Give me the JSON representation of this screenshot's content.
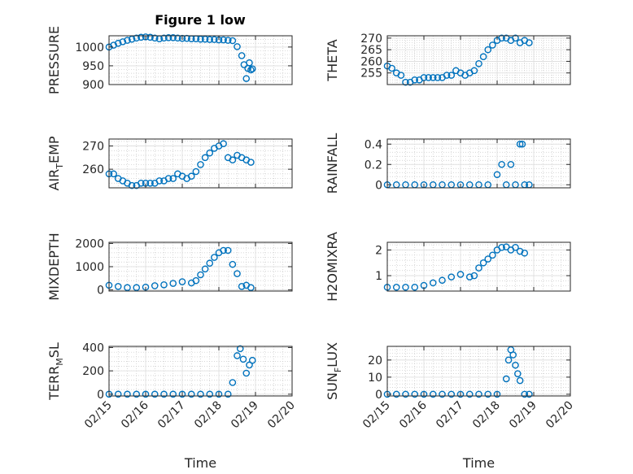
{
  "figure_title": "Figure 1 low",
  "colors": {
    "marker": "#0072BD",
    "axis": "#262626",
    "grid": "#c8c8c8",
    "background": "#ffffff"
  },
  "x_ticks": [
    "02/15",
    "02/16",
    "02/17",
    "02/18",
    "02/19",
    "02/20"
  ],
  "x_label": "Time",
  "chart_data": [
    {
      "type": "scatter",
      "ylabel": "PRESSURE",
      "title": "Figure 1 low",
      "xlim": [
        "02/15",
        "02/20"
      ],
      "ylim": [
        900,
        1030
      ],
      "yticks": [
        900,
        950,
        1000
      ],
      "grid": true,
      "points": [
        [
          "02/15 00:00",
          1000
        ],
        [
          "02/15 03:00",
          1005
        ],
        [
          "02/15 06:00",
          1010
        ],
        [
          "02/15 09:00",
          1014
        ],
        [
          "02/15 12:00",
          1018
        ],
        [
          "02/15 15:00",
          1021
        ],
        [
          "02/15 18:00",
          1024
        ],
        [
          "02/15 21:00",
          1026
        ],
        [
          "02/16 00:00",
          1027
        ],
        [
          "02/16 03:00",
          1026
        ],
        [
          "02/16 06:00",
          1024
        ],
        [
          "02/16 09:00",
          1022
        ],
        [
          "02/16 12:00",
          1024
        ],
        [
          "02/16 15:00",
          1025
        ],
        [
          "02/16 18:00",
          1025
        ],
        [
          "02/16 21:00",
          1024
        ],
        [
          "02/17 00:00",
          1023
        ],
        [
          "02/17 03:00",
          1023
        ],
        [
          "02/17 06:00",
          1022
        ],
        [
          "02/17 09:00",
          1022
        ],
        [
          "02/17 12:00",
          1021
        ],
        [
          "02/17 15:00",
          1021
        ],
        [
          "02/17 18:00",
          1020
        ],
        [
          "02/17 21:00",
          1020
        ],
        [
          "02/18 00:00",
          1019
        ],
        [
          "02/18 03:00",
          1019
        ],
        [
          "02/18 06:00",
          1018
        ],
        [
          "02/18 09:00",
          1017
        ],
        [
          "02/18 12:00",
          1001
        ],
        [
          "02/18 15:00",
          977
        ],
        [
          "02/18 16:30",
          953
        ],
        [
          "02/18 18:00",
          916
        ],
        [
          "02/18 19:00",
          943
        ],
        [
          "02/18 20:00",
          958
        ],
        [
          "02/18 21:00",
          939
        ],
        [
          "02/18 22:00",
          942
        ]
      ]
    },
    {
      "type": "scatter",
      "ylabel": "THETA",
      "xlim": [
        "02/15",
        "02/20"
      ],
      "ylim": [
        250,
        271
      ],
      "yticks": [
        255,
        260,
        265,
        270
      ],
      "grid": true,
      "points": [
        [
          "02/15 00:00",
          258
        ],
        [
          "02/15 03:00",
          257
        ],
        [
          "02/15 06:00",
          255
        ],
        [
          "02/15 09:00",
          254
        ],
        [
          "02/15 12:00",
          251
        ],
        [
          "02/15 15:00",
          251
        ],
        [
          "02/15 18:00",
          252
        ],
        [
          "02/15 21:00",
          252
        ],
        [
          "02/16 00:00",
          253
        ],
        [
          "02/16 03:00",
          253
        ],
        [
          "02/16 06:00",
          253
        ],
        [
          "02/16 09:00",
          253
        ],
        [
          "02/16 12:00",
          253
        ],
        [
          "02/16 15:00",
          254
        ],
        [
          "02/16 18:00",
          254
        ],
        [
          "02/16 21:00",
          256
        ],
        [
          "02/17 00:00",
          255
        ],
        [
          "02/17 03:00",
          254
        ],
        [
          "02/17 06:00",
          255
        ],
        [
          "02/17 09:00",
          256
        ],
        [
          "02/17 12:00",
          259
        ],
        [
          "02/17 15:00",
          262
        ],
        [
          "02/17 18:00",
          265
        ],
        [
          "02/17 21:00",
          267
        ],
        [
          "02/18 00:00",
          269
        ],
        [
          "02/18 03:00",
          270
        ],
        [
          "02/18 06:00",
          270
        ],
        [
          "02/18 09:00",
          269
        ],
        [
          "02/18 12:00",
          270
        ],
        [
          "02/18 15:00",
          268
        ],
        [
          "02/18 18:00",
          269
        ],
        [
          "02/18 21:00",
          268
        ]
      ]
    },
    {
      "type": "scatter",
      "ylabel": "AIR_TEMP",
      "xlim": [
        "02/15",
        "02/20"
      ],
      "ylim": [
        252,
        273
      ],
      "yticks": [
        260,
        270
      ],
      "grid": true,
      "points": [
        [
          "02/15 00:00",
          258
        ],
        [
          "02/15 03:00",
          258
        ],
        [
          "02/15 06:00",
          256
        ],
        [
          "02/15 09:00",
          255
        ],
        [
          "02/15 12:00",
          254
        ],
        [
          "02/15 15:00",
          253
        ],
        [
          "02/15 18:00",
          253
        ],
        [
          "02/15 21:00",
          254
        ],
        [
          "02/16 00:00",
          254
        ],
        [
          "02/16 03:00",
          254
        ],
        [
          "02/16 06:00",
          254
        ],
        [
          "02/16 09:00",
          255
        ],
        [
          "02/16 12:00",
          255
        ],
        [
          "02/16 15:00",
          256
        ],
        [
          "02/16 18:00",
          256
        ],
        [
          "02/16 21:00",
          258
        ],
        [
          "02/17 00:00",
          257
        ],
        [
          "02/17 03:00",
          256
        ],
        [
          "02/17 06:00",
          257
        ],
        [
          "02/17 09:00",
          259
        ],
        [
          "02/17 12:00",
          262
        ],
        [
          "02/17 15:00",
          265
        ],
        [
          "02/17 18:00",
          267
        ],
        [
          "02/17 21:00",
          269
        ],
        [
          "02/18 00:00",
          270
        ],
        [
          "02/18 03:00",
          271
        ],
        [
          "02/18 06:00",
          265
        ],
        [
          "02/18 09:00",
          264
        ],
        [
          "02/18 12:00",
          266
        ],
        [
          "02/18 15:00",
          265
        ],
        [
          "02/18 18:00",
          264
        ],
        [
          "02/18 21:00",
          263
        ]
      ]
    },
    {
      "type": "scatter",
      "ylabel": "RAINFALL",
      "xlim": [
        "02/15",
        "02/20"
      ],
      "ylim": [
        -0.03,
        0.45
      ],
      "yticks": [
        0,
        0.2,
        0.4
      ],
      "grid": true,
      "points": [
        [
          "02/15 00:00",
          0
        ],
        [
          "02/15 06:00",
          0
        ],
        [
          "02/15 12:00",
          0
        ],
        [
          "02/15 18:00",
          0
        ],
        [
          "02/16 00:00",
          0
        ],
        [
          "02/16 06:00",
          0
        ],
        [
          "02/16 12:00",
          0
        ],
        [
          "02/16 18:00",
          0
        ],
        [
          "02/17 00:00",
          0
        ],
        [
          "02/17 06:00",
          0
        ],
        [
          "02/17 12:00",
          0
        ],
        [
          "02/17 18:00",
          0
        ],
        [
          "02/18 00:00",
          0.1
        ],
        [
          "02/18 03:00",
          0.2
        ],
        [
          "02/18 06:00",
          0
        ],
        [
          "02/18 09:00",
          0.2
        ],
        [
          "02/18 12:00",
          0
        ],
        [
          "02/18 15:00",
          0.4
        ],
        [
          "02/18 16:30",
          0.4
        ],
        [
          "02/18 18:00",
          0
        ],
        [
          "02/18 21:00",
          0
        ]
      ]
    },
    {
      "type": "scatter",
      "ylabel": "MIXDEPTH",
      "xlim": [
        "02/15",
        "02/20"
      ],
      "ylim": [
        -50,
        2050
      ],
      "yticks": [
        0,
        1000,
        2000
      ],
      "grid": true,
      "points": [
        [
          "02/15 00:00",
          200
        ],
        [
          "02/15 06:00",
          150
        ],
        [
          "02/15 12:00",
          100
        ],
        [
          "02/15 18:00",
          100
        ],
        [
          "02/16 00:00",
          120
        ],
        [
          "02/16 06:00",
          180
        ],
        [
          "02/16 12:00",
          220
        ],
        [
          "02/16 18:00",
          280
        ],
        [
          "02/17 00:00",
          350
        ],
        [
          "02/17 06:00",
          300
        ],
        [
          "02/17 09:00",
          400
        ],
        [
          "02/17 12:00",
          650
        ],
        [
          "02/17 15:00",
          900
        ],
        [
          "02/17 18:00",
          1150
        ],
        [
          "02/17 21:00",
          1400
        ],
        [
          "02/18 00:00",
          1600
        ],
        [
          "02/18 03:00",
          1700
        ],
        [
          "02/18 06:00",
          1700
        ],
        [
          "02/18 09:00",
          1100
        ],
        [
          "02/18 12:00",
          700
        ],
        [
          "02/18 15:00",
          150
        ],
        [
          "02/18 18:00",
          200
        ],
        [
          "02/18 21:00",
          100
        ]
      ]
    },
    {
      "type": "scatter",
      "ylabel": "H2OMIXRA",
      "xlim": [
        "02/15",
        "02/20"
      ],
      "ylim": [
        0.4,
        2.3
      ],
      "yticks": [
        1,
        2
      ],
      "grid": true,
      "points": [
        [
          "02/15 00:00",
          0.55
        ],
        [
          "02/15 06:00",
          0.55
        ],
        [
          "02/15 12:00",
          0.55
        ],
        [
          "02/15 18:00",
          0.55
        ],
        [
          "02/16 00:00",
          0.62
        ],
        [
          "02/16 06:00",
          0.72
        ],
        [
          "02/16 12:00",
          0.82
        ],
        [
          "02/16 18:00",
          0.95
        ],
        [
          "02/17 00:00",
          1.05
        ],
        [
          "02/17 06:00",
          0.95
        ],
        [
          "02/17 09:00",
          1.0
        ],
        [
          "02/17 12:00",
          1.3
        ],
        [
          "02/17 15:00",
          1.5
        ],
        [
          "02/17 18:00",
          1.65
        ],
        [
          "02/17 21:00",
          1.8
        ],
        [
          "02/18 00:00",
          2.0
        ],
        [
          "02/18 03:00",
          2.1
        ],
        [
          "02/18 06:00",
          2.12
        ],
        [
          "02/18 09:00",
          2.0
        ],
        [
          "02/18 12:00",
          2.1
        ],
        [
          "02/18 15:00",
          1.95
        ],
        [
          "02/18 18:00",
          1.88
        ]
      ]
    },
    {
      "type": "scatter",
      "ylabel": "TERR_MSL",
      "xlim": [
        "02/15",
        "02/20"
      ],
      "ylim": [
        -15,
        410
      ],
      "yticks": [
        0,
        200,
        400
      ],
      "grid": true,
      "points": [
        [
          "02/15 00:00",
          0
        ],
        [
          "02/15 06:00",
          0
        ],
        [
          "02/15 12:00",
          0
        ],
        [
          "02/15 18:00",
          0
        ],
        [
          "02/16 00:00",
          0
        ],
        [
          "02/16 06:00",
          0
        ],
        [
          "02/16 12:00",
          0
        ],
        [
          "02/16 18:00",
          0
        ],
        [
          "02/17 00:00",
          0
        ],
        [
          "02/17 06:00",
          0
        ],
        [
          "02/17 12:00",
          0
        ],
        [
          "02/17 18:00",
          0
        ],
        [
          "02/18 00:00",
          0
        ],
        [
          "02/18 06:00",
          0
        ],
        [
          "02/18 09:00",
          100
        ],
        [
          "02/18 12:00",
          330
        ],
        [
          "02/18 14:00",
          390
        ],
        [
          "02/18 16:00",
          300
        ],
        [
          "02/18 18:00",
          180
        ],
        [
          "02/18 20:00",
          250
        ],
        [
          "02/18 22:00",
          290
        ]
      ]
    },
    {
      "type": "scatter",
      "ylabel": "SUN_FLUX",
      "xlim": [
        "02/15",
        "02/20"
      ],
      "ylim": [
        -1,
        28
      ],
      "yticks": [
        0,
        10,
        20
      ],
      "grid": true,
      "points": [
        [
          "02/15 00:00",
          0
        ],
        [
          "02/15 06:00",
          0
        ],
        [
          "02/15 12:00",
          0
        ],
        [
          "02/15 18:00",
          0
        ],
        [
          "02/16 00:00",
          0
        ],
        [
          "02/16 06:00",
          0
        ],
        [
          "02/16 12:00",
          0
        ],
        [
          "02/16 18:00",
          0
        ],
        [
          "02/17 00:00",
          0
        ],
        [
          "02/17 06:00",
          0
        ],
        [
          "02/17 12:00",
          0
        ],
        [
          "02/17 18:00",
          0
        ],
        [
          "02/18 00:00",
          0
        ],
        [
          "02/18 06:00",
          9
        ],
        [
          "02/18 07:30",
          20
        ],
        [
          "02/18 09:00",
          26
        ],
        [
          "02/18 10:30",
          23
        ],
        [
          "02/18 12:00",
          17
        ],
        [
          "02/18 13:30",
          12
        ],
        [
          "02/18 15:00",
          8
        ],
        [
          "02/18 18:00",
          0
        ],
        [
          "02/18 21:00",
          0
        ]
      ]
    }
  ]
}
